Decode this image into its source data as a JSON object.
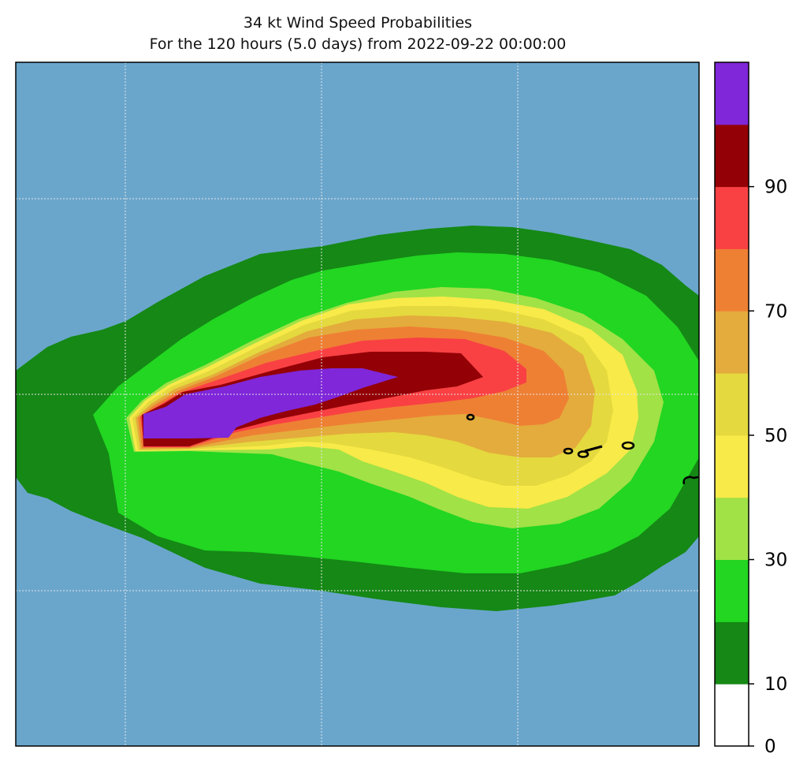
{
  "title": {
    "line1": "34 kt Wind Speed Probabilities",
    "line2": "For the 120 hours (5.0 days) from 2022-09-22 00:00:00"
  },
  "map": {
    "ocean_color": "#6aa6cc",
    "contour_levels": [
      0,
      10,
      20,
      30,
      40,
      50,
      60,
      70,
      80,
      90,
      100
    ]
  },
  "colorbar": {
    "bands": [
      {
        "from": 0,
        "to": 10,
        "color": "#ffffff"
      },
      {
        "from": 10,
        "to": 20,
        "color": "#158815"
      },
      {
        "from": 20,
        "to": 30,
        "color": "#22d622"
      },
      {
        "from": 30,
        "to": 40,
        "color": "#a1e246"
      },
      {
        "from": 40,
        "to": 50,
        "color": "#f8ea48"
      },
      {
        "from": 50,
        "to": 60,
        "color": "#e4d93e"
      },
      {
        "from": 60,
        "to": 70,
        "color": "#e4ac3c"
      },
      {
        "from": 70,
        "to": 80,
        "color": "#ee8034"
      },
      {
        "from": 80,
        "to": 90,
        "color": "#f94144"
      },
      {
        "from": 90,
        "to": 100,
        "color": "#930006"
      },
      {
        "from": 100,
        "to": 110,
        "color": "#7f27d9"
      }
    ],
    "ticks": [
      "0",
      "10",
      "30",
      "50",
      "70",
      "90"
    ]
  }
}
